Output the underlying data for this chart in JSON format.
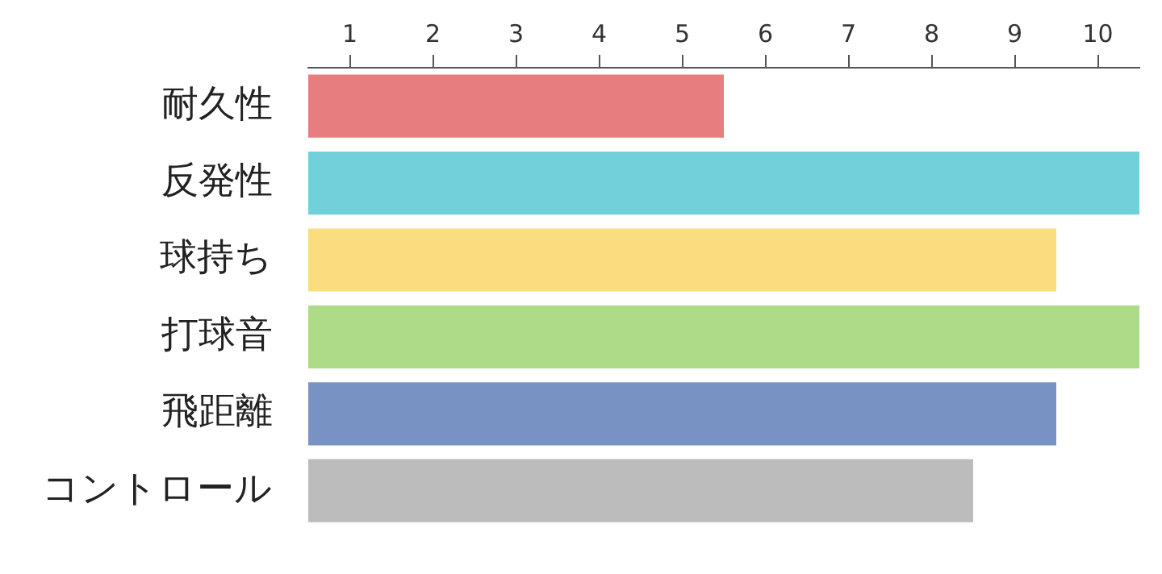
{
  "chart_data": {
    "type": "bar",
    "orientation": "horizontal",
    "categories": [
      "耐久性",
      "反発性",
      "球持ち",
      "打球音",
      "飛距離",
      "コントロール"
    ],
    "values": [
      5,
      10,
      9,
      10,
      9,
      8
    ],
    "base": [
      0.5,
      0.5,
      0.5,
      0.5,
      0.5,
      0.5
    ],
    "colors": [
      "#e87d80",
      "#72d0da",
      "#f9dd7e",
      "#aedb87",
      "#7892c4",
      "#bcbcbc"
    ],
    "xlim": [
      0.5,
      10.5
    ],
    "xticks": [
      1,
      2,
      3,
      4,
      5,
      6,
      7,
      8,
      9,
      10
    ]
  }
}
